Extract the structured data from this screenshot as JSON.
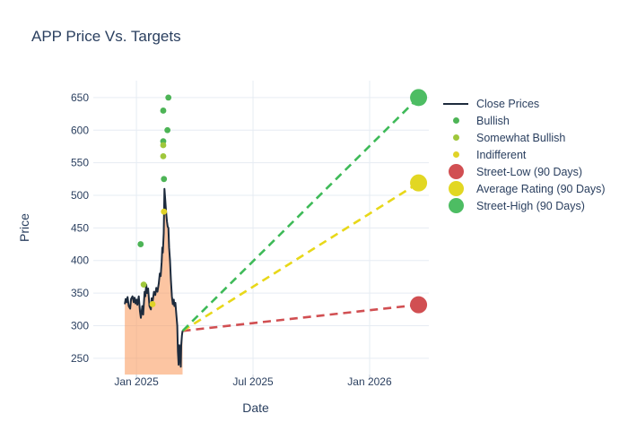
{
  "title": "APP Price Vs. Targets",
  "axes": {
    "x_label": "Date",
    "y_label": "Price"
  },
  "legend": {
    "items": [
      {
        "id": "close-prices",
        "label": "Close Prices",
        "type": "line",
        "color": "#1d2b3d"
      },
      {
        "id": "bullish",
        "label": "Bullish",
        "type": "dot-small",
        "color": "#4db456"
      },
      {
        "id": "somewhat-bullish",
        "label": "Somewhat Bullish",
        "type": "dot-small",
        "color": "#9fc73b"
      },
      {
        "id": "indifferent",
        "label": "Indifferent",
        "type": "dot-small",
        "color": "#e0d327"
      },
      {
        "id": "street-low",
        "label": "Street-Low (90 Days)",
        "type": "dot-large",
        "color": "#d14f52"
      },
      {
        "id": "average-rating",
        "label": "Average Rating (90 Days)",
        "type": "dot-large",
        "color": "#e2d723"
      },
      {
        "id": "street-high",
        "label": "Street-High (90 Days)",
        "type": "dot-large",
        "color": "#4dbd63"
      }
    ]
  },
  "chart_data": {
    "type": "line+scatter",
    "title": "APP Price Vs. Targets",
    "xlabel": "Date",
    "ylabel": "Price",
    "x_unit": "decimal_year",
    "x_range": [
      2024.815,
      2026.254
    ],
    "y_range": [
      225,
      676
    ],
    "grid": true,
    "xticks": [
      {
        "t": 2025.0,
        "label": "Jan 2025"
      },
      {
        "t": 2025.5,
        "label": "Jul 2025"
      },
      {
        "t": 2026.0,
        "label": "Jan 2026"
      }
    ],
    "yticks": [
      250,
      300,
      350,
      400,
      450,
      500,
      550,
      600,
      650
    ],
    "close_prices": {
      "name": "Close Prices",
      "line_color": "#1d2b3d",
      "fill_color": "rgba(250,150,85,0.55)",
      "points": [
        [
          2024.95,
          333
        ],
        [
          2024.954,
          341
        ],
        [
          2024.958,
          336
        ],
        [
          2024.962,
          344
        ],
        [
          2024.967,
          330
        ],
        [
          2024.973,
          326
        ],
        [
          2024.977,
          341
        ],
        [
          2024.983,
          345
        ],
        [
          2024.988,
          336
        ],
        [
          2024.992,
          343
        ],
        [
          2024.996,
          334
        ],
        [
          2025.0,
          340
        ],
        [
          2025.004,
          332
        ],
        [
          2025.01,
          345
        ],
        [
          2025.015,
          322
        ],
        [
          2025.019,
          312
        ],
        [
          2025.025,
          330
        ],
        [
          2025.029,
          317
        ],
        [
          2025.035,
          352
        ],
        [
          2025.038,
          345
        ],
        [
          2025.042,
          363
        ],
        [
          2025.046,
          350
        ],
        [
          2025.05,
          357
        ],
        [
          2025.056,
          330
        ],
        [
          2025.062,
          325
        ],
        [
          2025.065,
          342
        ],
        [
          2025.069,
          336
        ],
        [
          2025.075,
          352
        ],
        [
          2025.081,
          347
        ],
        [
          2025.085,
          358
        ],
        [
          2025.09,
          352
        ],
        [
          2025.096,
          365
        ],
        [
          2025.1,
          380
        ],
        [
          2025.104,
          376
        ],
        [
          2025.108,
          398
        ],
        [
          2025.111,
          420
        ],
        [
          2025.113,
          412
        ],
        [
          2025.117,
          442
        ],
        [
          2025.12,
          510
        ],
        [
          2025.123,
          495
        ],
        [
          2025.127,
          475
        ],
        [
          2025.131,
          460
        ],
        [
          2025.134,
          452
        ],
        [
          2025.137,
          450
        ],
        [
          2025.14,
          420
        ],
        [
          2025.144,
          400
        ],
        [
          2025.148,
          370
        ],
        [
          2025.152,
          345
        ],
        [
          2025.156,
          333
        ],
        [
          2025.16,
          340
        ],
        [
          2025.163,
          330
        ],
        [
          2025.167,
          335
        ],
        [
          2025.171,
          318
        ],
        [
          2025.175,
          300
        ],
        [
          2025.178,
          260
        ],
        [
          2025.181,
          240
        ],
        [
          2025.184,
          270
        ],
        [
          2025.187,
          255
        ],
        [
          2025.19,
          237
        ],
        [
          2025.192,
          270
        ],
        [
          2025.195,
          285
        ],
        [
          2025.198,
          292
        ]
      ]
    },
    "ratings": [
      {
        "name": "Bullish",
        "color": "#4db456",
        "points": [
          [
            2025.018,
            425
          ],
          [
            2025.115,
            630
          ],
          [
            2025.115,
            583
          ],
          [
            2025.118,
            525
          ],
          [
            2025.133,
            600
          ],
          [
            2025.137,
            650
          ]
        ]
      },
      {
        "name": "Somewhat Bullish",
        "color": "#9fc73b",
        "points": [
          [
            2025.031,
            363
          ],
          [
            2025.115,
            577
          ],
          [
            2025.115,
            560
          ]
        ]
      },
      {
        "name": "Indifferent",
        "color": "#e0d327",
        "points": [
          [
            2025.069,
            333
          ],
          [
            2025.118,
            475
          ]
        ]
      }
    ],
    "targets": {
      "t": 2026.21,
      "projection_from": [
        2025.198,
        292
      ],
      "items": [
        {
          "name": "Street-Low (90 Days)",
          "value": 332,
          "color": "#d14f52",
          "dash_color": "#d14f52"
        },
        {
          "name": "Average Rating (90 Days)",
          "value": 519,
          "color": "#e2d723",
          "dash_color": "#e8d819"
        },
        {
          "name": "Street-High (90 Days)",
          "value": 650,
          "color": "#4dbd63",
          "dash_color": "#3eba58"
        }
      ]
    }
  }
}
